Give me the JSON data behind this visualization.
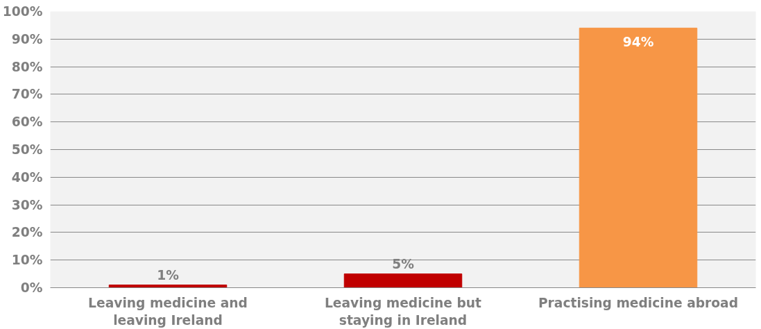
{
  "chart_data": {
    "type": "bar",
    "categories": [
      "Leaving medicine and leaving Ireland",
      "Leaving medicine but staying in Ireland",
      "Practising medicine abroad"
    ],
    "values": [
      1,
      5,
      94
    ],
    "colors": [
      "#c00000",
      "#c00000",
      "#f79646"
    ],
    "value_labels": [
      "1%",
      "5%",
      "94%"
    ],
    "ylim": [
      0,
      100
    ],
    "yticks": [
      {
        "value": 0,
        "label": "0%"
      },
      {
        "value": 10,
        "label": "10%"
      },
      {
        "value": 20,
        "label": "20%"
      },
      {
        "value": 30,
        "label": "30%"
      },
      {
        "value": 40,
        "label": "40%"
      },
      {
        "value": 50,
        "label": "50%"
      },
      {
        "value": 60,
        "label": "60%"
      },
      {
        "value": 70,
        "label": "70%"
      },
      {
        "value": 80,
        "label": "80%"
      },
      {
        "value": 90,
        "label": "90%"
      },
      {
        "value": 100,
        "label": "100%"
      }
    ],
    "grid": "y"
  }
}
